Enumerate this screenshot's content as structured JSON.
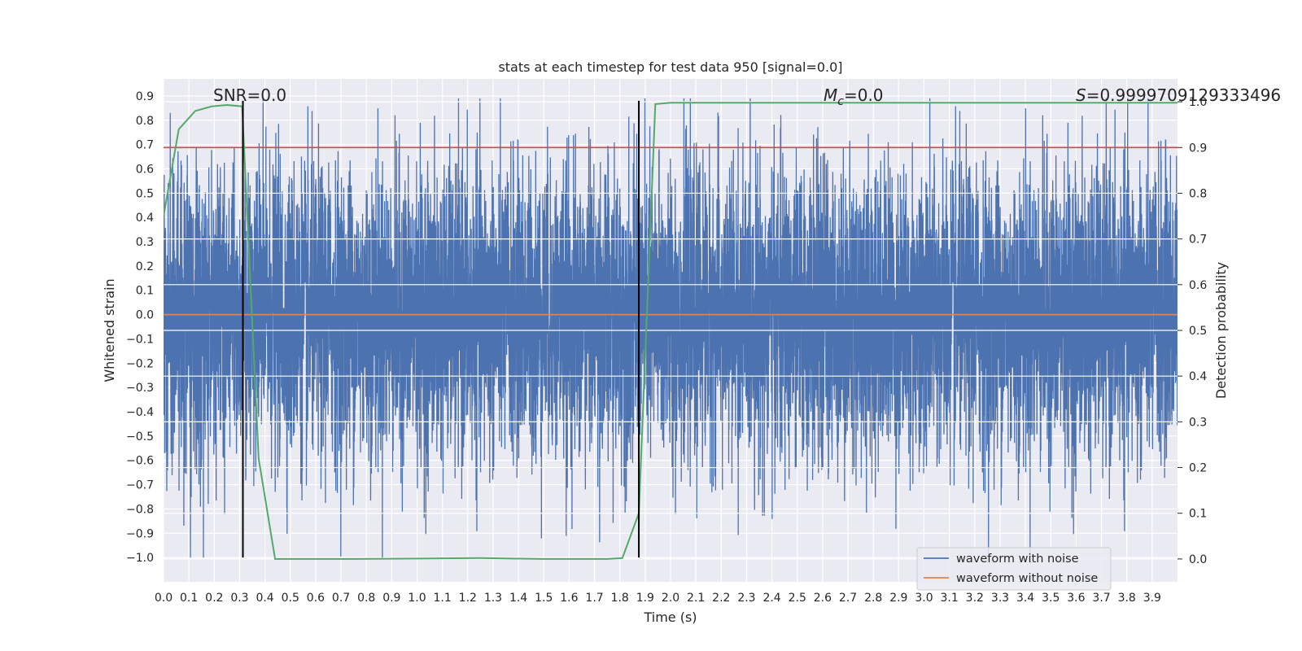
{
  "chart_data": {
    "type": "line",
    "title": "stats at each timestep for test data 950 [signal=0.0]",
    "xlabel": "Time (s)",
    "ylabel": "Whitened strain",
    "ylabel_right": "Detection probability",
    "xlim": [
      0.0,
      4.0
    ],
    "ylim": [
      -1.1,
      0.97
    ],
    "ylim_right": [
      -0.05,
      1.05
    ],
    "grid": true,
    "x_ticks": [
      "0.0",
      "0.1",
      "0.2",
      "0.3",
      "0.4",
      "0.5",
      "0.6",
      "0.7",
      "0.8",
      "0.9",
      "1.0",
      "1.1",
      "1.2",
      "1.3",
      "1.4",
      "1.5",
      "1.6",
      "1.7",
      "1.8",
      "1.9",
      "2.0",
      "2.1",
      "2.2",
      "2.3",
      "2.4",
      "2.5",
      "2.6",
      "2.7",
      "2.8",
      "2.9",
      "3.0",
      "3.1",
      "3.2",
      "3.3",
      "3.4",
      "3.5",
      "3.6",
      "3.7",
      "3.8",
      "3.9"
    ],
    "y_ticks": [
      "0.9",
      "0.8",
      "0.7",
      "0.6",
      "0.5",
      "0.4",
      "0.3",
      "0.2",
      "0.1",
      "0.0",
      "−0.1",
      "−0.2",
      "−0.3",
      "−0.4",
      "−0.5",
      "−0.6",
      "−0.7",
      "−0.8",
      "−0.9",
      "−1.0"
    ],
    "y_right_ticks": [
      "1.0",
      "0.9",
      "0.8",
      "0.7",
      "0.6",
      "0.5",
      "0.4",
      "0.3",
      "0.2",
      "0.1",
      "0.0"
    ],
    "annotations": {
      "snr": "SNR=0.0",
      "mc_symbol": "M",
      "mc_subscript": "c",
      "mc_value": "=0.0",
      "s_symbol": "S",
      "s_value": "=0.9999709129333496"
    },
    "threshold": {
      "value": 0.9,
      "axis": "right",
      "color": "#c44e52"
    },
    "vertical_markers": {
      "x": [
        0.313,
        1.875
      ],
      "ymin": -1.0,
      "ymax": 0.88,
      "color": "#000000"
    },
    "series": [
      {
        "name": "waveform with noise",
        "color": "#4c72b0",
        "kind": "noise",
        "sample_rate": 2048,
        "std": 0.3,
        "min": -1.0,
        "max": 0.89
      },
      {
        "name": "waveform without noise",
        "color": "#dd8452",
        "kind": "constant",
        "value": 0.0
      },
      {
        "color": "#55a868",
        "axis": "right",
        "x": [
          0.0,
          0.06,
          0.125,
          0.19,
          0.25,
          0.31,
          0.375,
          0.44,
          0.5,
          0.75,
          1.0,
          1.25,
          1.5,
          1.75,
          1.81,
          1.875,
          1.94,
          2.0,
          2.5,
          3.0,
          3.5,
          4.0
        ],
        "y": [
          0.75,
          0.94,
          0.98,
          0.99,
          0.993,
          0.99,
          0.22,
          0.0,
          0.0,
          0.0,
          0.001,
          0.002,
          0.0,
          0.0,
          0.002,
          0.1,
          0.995,
          0.998,
          0.998,
          0.998,
          0.998,
          0.998
        ]
      }
    ],
    "legend": {
      "placement": "lower right",
      "entries": [
        "waveform with noise",
        "waveform without noise"
      ]
    }
  }
}
